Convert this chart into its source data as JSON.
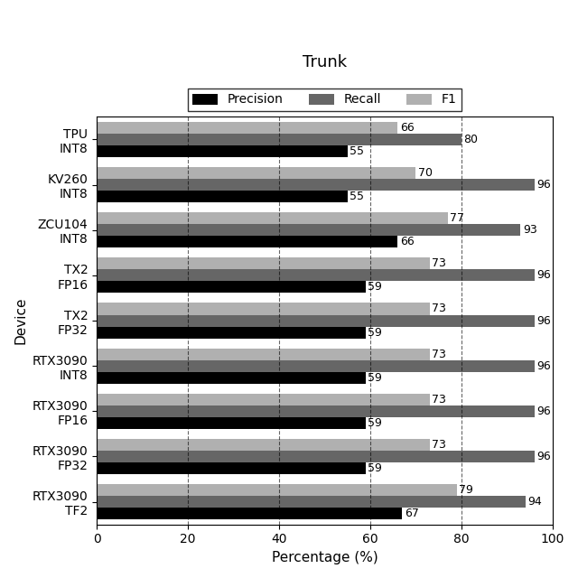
{
  "title": "Trunk",
  "xlabel": "Percentage (%)",
  "ylabel": "Device",
  "xlim": [
    0,
    100
  ],
  "xticks": [
    0,
    20,
    40,
    60,
    80,
    100
  ],
  "devices": [
    "RTX3090\nTF2",
    "RTX3090\nFP32",
    "RTX3090\nFP16",
    "RTX3090\nINT8",
    "TX2\nFP32",
    "TX2\nFP16",
    "ZCU104\nINT8",
    "KV260\nINT8",
    "TPU\nINT8"
  ],
  "precision": [
    67,
    59,
    59,
    59,
    59,
    59,
    66,
    55,
    55
  ],
  "recall": [
    94,
    96,
    96,
    96,
    96,
    96,
    93,
    96,
    80
  ],
  "f1": [
    79,
    73,
    73,
    73,
    73,
    73,
    77,
    70,
    66
  ],
  "color_precision": "#000000",
  "color_recall": "#666666",
  "color_f1": "#b0b0b0",
  "bar_height": 0.26,
  "vlines": [
    20,
    40,
    60,
    80
  ],
  "title_fontsize": 13,
  "label_fontsize": 11,
  "tick_fontsize": 10,
  "bar_label_fontsize": 9
}
